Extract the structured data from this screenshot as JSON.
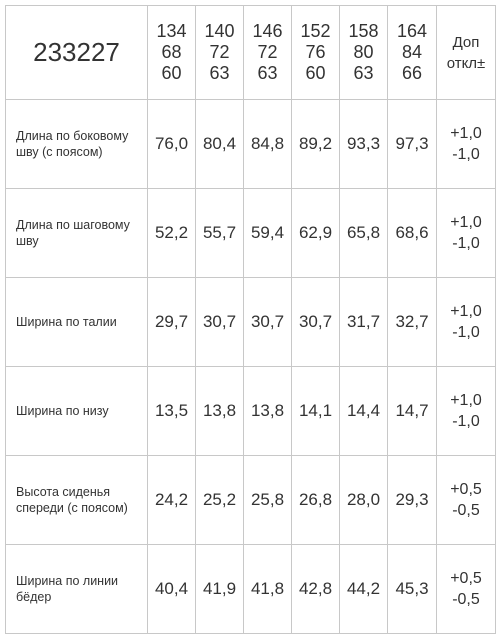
{
  "table": {
    "header": {
      "code": "233227",
      "sizes": [
        [
          "134",
          "68",
          "60"
        ],
        [
          "140",
          "72",
          "63"
        ],
        [
          "146",
          "72",
          "63"
        ],
        [
          "152",
          "76",
          "60"
        ],
        [
          "158",
          "80",
          "63"
        ],
        [
          "164",
          "84",
          "66"
        ]
      ],
      "tolerance": [
        "Доп",
        "откл±"
      ]
    },
    "rows": [
      {
        "label": [
          "Длина по боковому",
          "шву (с поясом)"
        ],
        "values": [
          "76,0",
          "80,4",
          "84,8",
          "89,2",
          "93,3",
          "97,3"
        ],
        "tolerance": [
          "+1,0",
          "-1,0"
        ]
      },
      {
        "label": [
          "Длина по шаговому",
          "шву"
        ],
        "values": [
          "52,2",
          "55,7",
          "59,4",
          "62,9",
          "65,8",
          "68,6"
        ],
        "tolerance": [
          "+1,0",
          "-1,0"
        ]
      },
      {
        "label": [
          "Ширина по талии"
        ],
        "values": [
          "29,7",
          "30,7",
          "30,7",
          "30,7",
          "31,7",
          "32,7"
        ],
        "tolerance": [
          "+1,0",
          "-1,0"
        ]
      },
      {
        "label": [
          "Ширина по низу"
        ],
        "values": [
          "13,5",
          "13,8",
          "13,8",
          "14,1",
          "14,4",
          "14,7"
        ],
        "tolerance": [
          "+1,0",
          "-1,0"
        ]
      },
      {
        "label": [
          "Высота сиденья",
          "спереди (с поясом)"
        ],
        "values": [
          "24,2",
          "25,2",
          "25,8",
          "26,8",
          "28,0",
          "29,3"
        ],
        "tolerance": [
          "+0,5",
          "-0,5"
        ]
      },
      {
        "label": [
          "Ширина по линии",
          "бёдер"
        ],
        "values": [
          "40,4",
          "41,9",
          "41,8",
          "42,8",
          "44,2",
          "45,3"
        ],
        "tolerance": [
          "+0,5",
          "-0,5"
        ]
      }
    ]
  }
}
